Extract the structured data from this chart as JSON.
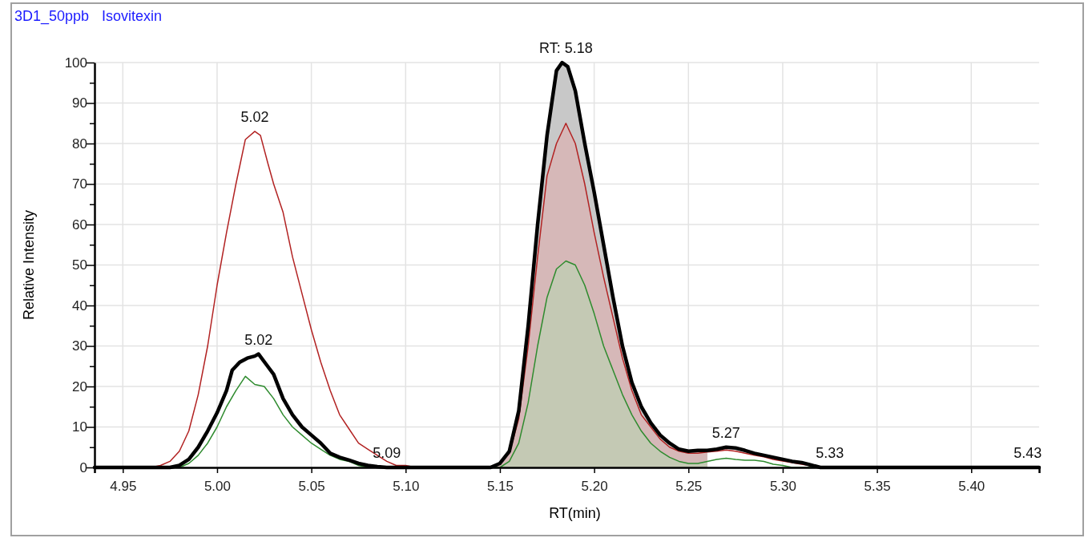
{
  "chart_data": {
    "type": "line",
    "title": "3D1_50ppb",
    "subtitle": "Isovitexin",
    "xlabel": "RT(min)",
    "ylabel": "Relative Intensity",
    "xlim": [
      4.935,
      5.436
    ],
    "xticks": [
      4.95,
      {
        "value": 5.0,
        "label": "5.00"
      },
      5.05,
      {
        "value": 5.1,
        "label": "5.10"
      },
      5.15,
      {
        "value": 5.2,
        "label": "5.20"
      },
      5.25,
      {
        "value": 5.3,
        "label": "5.30"
      },
      5.35,
      {
        "value": 5.4,
        "label": "5.40"
      }
    ],
    "ylim": [
      0,
      100
    ],
    "yticks": [
      0,
      {
        "value": 5,
        "label": null
      },
      10,
      {
        "value": 15,
        "label": null
      },
      20,
      {
        "value": 25,
        "label": null
      },
      30,
      {
        "value": 35,
        "label": null
      },
      40,
      {
        "value": 45,
        "label": null
      },
      50,
      {
        "value": 55,
        "label": null
      },
      60,
      {
        "value": 65,
        "label": null
      },
      70,
      {
        "value": 75,
        "label": null
      },
      80,
      {
        "value": 85,
        "label": null
      },
      90,
      {
        "value": 95,
        "label": null
      },
      100
    ],
    "grid": true,
    "marker": "none",
    "line_style": "solid",
    "series": [
      {
        "type": "area",
        "color": "#c8c8c8",
        "x": [
          5.145,
          5.15,
          5.155,
          5.16,
          5.165,
          5.17,
          5.175,
          5.18,
          5.183,
          5.186,
          5.19,
          5.195,
          5.2,
          5.205,
          5.21,
          5.215,
          5.22,
          5.225,
          5.23,
          5.235,
          5.24,
          5.245,
          5.25,
          5.255,
          5.26
        ],
        "values": [
          0,
          1,
          4,
          14,
          35,
          60,
          82,
          98,
          100,
          99,
          93,
          80,
          68,
          55,
          42,
          30,
          21,
          15,
          11,
          8,
          6,
          4.5,
          4,
          4.2,
          4.2
        ]
      },
      {
        "type": "area",
        "color": "#d6b8b8",
        "x": [
          5.145,
          5.15,
          5.155,
          5.16,
          5.165,
          5.17,
          5.175,
          5.18,
          5.185,
          5.19,
          5.195,
          5.2,
          5.205,
          5.21,
          5.215,
          5.22,
          5.225,
          5.23,
          5.235,
          5.24,
          5.245,
          5.25,
          5.255,
          5.26
        ],
        "values": [
          0,
          1,
          3.5,
          12,
          30,
          52,
          72,
          80,
          85,
          80,
          70,
          58,
          47,
          37,
          27,
          19,
          13,
          10,
          7,
          5,
          4,
          3.5,
          3.5,
          3.8
        ]
      },
      {
        "type": "area",
        "color": "#c4c9b4",
        "x": [
          5.15,
          5.155,
          5.16,
          5.165,
          5.17,
          5.175,
          5.18,
          5.185,
          5.19,
          5.195,
          5.2,
          5.205,
          5.21,
          5.215,
          5.22,
          5.225,
          5.23,
          5.235,
          5.24,
          5.245,
          5.25,
          5.255,
          5.26
        ],
        "values": [
          0,
          1.5,
          6,
          16,
          30,
          42,
          49,
          51,
          50,
          45,
          38,
          30,
          24,
          18,
          13,
          9,
          6,
          4,
          2.5,
          1.5,
          1,
          1,
          1.5
        ]
      },
      {
        "color": "#2e8b2e",
        "x": [
          4.935,
          4.98,
          4.985,
          4.99,
          4.995,
          5.0,
          5.005,
          5.01,
          5.015,
          5.02,
          5.025,
          5.03,
          5.035,
          5.04,
          5.045,
          5.05,
          5.055,
          5.06,
          5.065,
          5.07,
          5.075,
          5.08,
          5.15,
          5.155,
          5.16,
          5.165,
          5.17,
          5.175,
          5.18,
          5.185,
          5.19,
          5.195,
          5.2,
          5.205,
          5.21,
          5.215,
          5.22,
          5.225,
          5.23,
          5.235,
          5.24,
          5.245,
          5.25,
          5.255,
          5.26,
          5.265,
          5.27,
          5.275,
          5.28,
          5.285,
          5.29,
          5.295,
          5.3,
          5.305,
          5.436
        ],
        "values": [
          0,
          0,
          1,
          3,
          6,
          10,
          15,
          19,
          22.5,
          20.5,
          20,
          17,
          13,
          10,
          8,
          6,
          4.5,
          3,
          2,
          1.5,
          0.5,
          0,
          0,
          1.5,
          6,
          16,
          30,
          42,
          49,
          51,
          50,
          45,
          38,
          30,
          24,
          18,
          13,
          9,
          6,
          4,
          2.5,
          1.5,
          1,
          1,
          1.5,
          2,
          2.3,
          2,
          1.8,
          1.8,
          1.5,
          0.8,
          0.5,
          0,
          0
        ]
      },
      {
        "color": "#b22222",
        "x": [
          4.935,
          4.965,
          4.97,
          4.975,
          4.98,
          4.985,
          4.99,
          4.995,
          5.0,
          5.005,
          5.01,
          5.015,
          5.02,
          5.023,
          5.027,
          5.03,
          5.035,
          5.04,
          5.045,
          5.05,
          5.055,
          5.06,
          5.065,
          5.07,
          5.075,
          5.08,
          5.085,
          5.09,
          5.095,
          5.1,
          5.105,
          5.145,
          5.15,
          5.155,
          5.16,
          5.165,
          5.17,
          5.175,
          5.18,
          5.185,
          5.19,
          5.195,
          5.2,
          5.205,
          5.21,
          5.215,
          5.22,
          5.225,
          5.23,
          5.235,
          5.24,
          5.245,
          5.25,
          5.255,
          5.26,
          5.265,
          5.27,
          5.275,
          5.28,
          5.285,
          5.29,
          5.295,
          5.3,
          5.305,
          5.31,
          5.315
        ],
        "values": [
          0,
          0,
          0.5,
          1.5,
          4,
          9,
          18,
          30,
          45,
          58,
          70,
          81,
          83,
          82,
          75,
          70,
          63,
          52,
          43,
          34,
          26,
          19,
          13,
          9.5,
          6,
          4.5,
          3,
          1.5,
          0.5,
          0.5,
          0,
          0,
          1,
          3.5,
          12,
          30,
          52,
          72,
          80,
          85,
          80,
          70,
          58,
          47,
          37,
          27,
          19,
          13,
          10,
          7,
          5,
          4,
          3.5,
          3.5,
          3.8,
          4,
          4.3,
          4,
          3.5,
          3,
          2.6,
          2,
          1.6,
          1.2,
          0.8,
          0.4
        ]
      },
      {
        "color": "#000000",
        "x": [
          4.935,
          4.975,
          4.98,
          4.985,
          4.99,
          4.995,
          5.0,
          5.005,
          5.008,
          5.012,
          5.016,
          5.02,
          5.022,
          5.026,
          5.03,
          5.035,
          5.04,
          5.045,
          5.05,
          5.055,
          5.06,
          5.065,
          5.07,
          5.075,
          5.08,
          5.085,
          5.09,
          5.145,
          5.15,
          5.155,
          5.16,
          5.165,
          5.17,
          5.175,
          5.18,
          5.183,
          5.186,
          5.19,
          5.195,
          5.2,
          5.205,
          5.21,
          5.215,
          5.22,
          5.225,
          5.23,
          5.235,
          5.24,
          5.245,
          5.25,
          5.255,
          5.26,
          5.265,
          5.27,
          5.275,
          5.28,
          5.285,
          5.29,
          5.295,
          5.3,
          5.305,
          5.31,
          5.315,
          5.32,
          5.436
        ],
        "values": [
          0,
          0,
          0.5,
          2,
          5,
          9,
          13.5,
          19,
          24,
          26,
          27,
          27.5,
          28,
          25.5,
          23,
          17,
          13,
          10,
          8,
          6,
          3.5,
          2.5,
          1.8,
          1,
          0.5,
          0.2,
          0,
          0,
          1,
          4,
          14,
          35,
          60,
          82,
          98,
          100,
          99,
          93,
          80,
          68,
          55,
          42,
          30,
          21,
          15,
          11,
          8,
          6,
          4.5,
          4,
          4.2,
          4.2,
          4.5,
          5,
          4.8,
          4.2,
          3.5,
          3,
          2.5,
          2,
          1.5,
          1.2,
          0.6,
          0,
          0
        ]
      }
    ],
    "annotations": [
      {
        "text": "5.02",
        "x": 5.02,
        "y": 83
      },
      {
        "text": "5.02",
        "x": 5.022,
        "y": 28
      },
      {
        "text": "5.09",
        "x": 5.09,
        "y": 0
      },
      {
        "text": "RT: 5.18",
        "x": 5.185,
        "y": 100
      },
      {
        "text": "5.27",
        "x": 5.27,
        "y": 5
      },
      {
        "text": "5.33",
        "x": 5.325,
        "y": 0
      },
      {
        "text": "5.43",
        "x": 5.43,
        "y": 0
      }
    ]
  }
}
